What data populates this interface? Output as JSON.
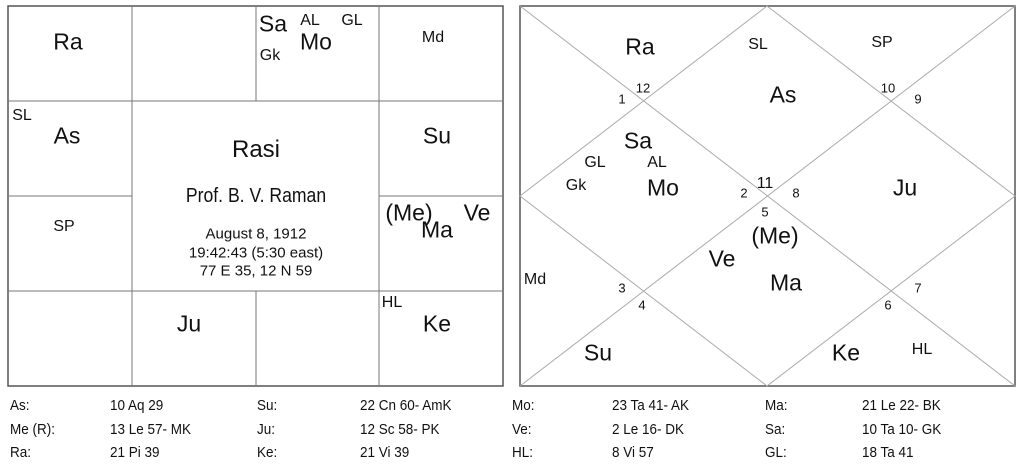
{
  "rasi_chart": {
    "title": "Rasi",
    "name": "Prof. B. V. Raman",
    "date": "August 8, 1912",
    "time": "19:42:43 (5:30 east)",
    "coords": "77 E 35, 12 N 59",
    "labels": {
      "ra": "Ra",
      "sa": "Sa",
      "al": "AL",
      "gl": "GL",
      "mo": "Mo",
      "gk": "Gk",
      "md": "Md",
      "sl": "SL",
      "as": "As",
      "su": "Su",
      "sp": "SP",
      "me": "(Me)",
      "ma": "Ma",
      "ve": "Ve",
      "hl": "HL",
      "ke": "Ke",
      "ju": "Ju"
    }
  },
  "north_chart": {
    "labels": {
      "ra": "Ra",
      "sl": "SL",
      "sp": "SP",
      "as": "As",
      "sa": "Sa",
      "gl": "GL",
      "al": "AL",
      "gk": "Gk",
      "mo": "Mo",
      "ju": "Ju",
      "me": "(Me)",
      "ve": "Ve",
      "md": "Md",
      "ma": "Ma",
      "su": "Su",
      "ke": "Ke",
      "hl": "HL"
    },
    "house_numbers": {
      "h1": "1",
      "h2": "2",
      "h3": "3",
      "h4": "4",
      "h5": "5",
      "h6": "6",
      "h7": "7",
      "h8": "8",
      "h9": "9",
      "h10": "10",
      "h11": "11",
      "h12": "12"
    }
  },
  "positions": [
    [
      {
        "label": "As:",
        "value": "10 Aq 29"
      },
      {
        "label": "Su:",
        "value": "22 Cn 60- AmK"
      },
      {
        "label": "Mo:",
        "value": "23 Ta 41- AK"
      },
      {
        "label": "Ma:",
        "value": "21 Le 22- BK"
      }
    ],
    [
      {
        "label": "Me (R):",
        "value": "13 Le 57- MK"
      },
      {
        "label": "Ju:",
        "value": "12 Sc 58- PK"
      },
      {
        "label": "Ve:",
        "value": "2 Le 16- DK"
      },
      {
        "label": "Sa:",
        "value": "10 Ta 10- GK"
      }
    ],
    [
      {
        "label": "Ra:",
        "value": "21 Pi 39"
      },
      {
        "label": "Ke:",
        "value": "21 Vi 39"
      },
      {
        "label": "HL:",
        "value": "8 Vi 57"
      },
      {
        "label": "GL:",
        "value": "18 Ta 41"
      }
    ]
  ]
}
